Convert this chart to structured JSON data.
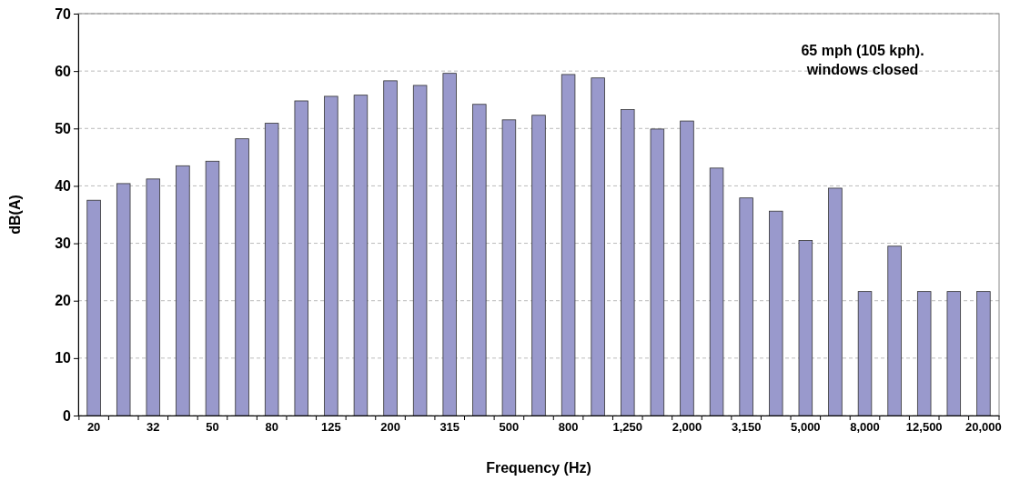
{
  "chart_data": {
    "type": "bar",
    "xlabel": "Frequency (Hz)",
    "ylabel": "dB(A)",
    "categories": [
      "20",
      null,
      "32",
      null,
      "50",
      null,
      "80",
      null,
      "125",
      null,
      "200",
      null,
      "315",
      null,
      "500",
      null,
      "800",
      null,
      "1,250",
      null,
      "2,000",
      null,
      "3,150",
      null,
      "5,000",
      null,
      "8,000",
      null,
      "12,500",
      null,
      "20,000"
    ],
    "values": [
      37.5,
      40.4,
      41.2,
      43.5,
      44.3,
      48.2,
      50.9,
      54.8,
      55.6,
      55.8,
      58.3,
      57.5,
      59.6,
      54.2,
      51.5,
      52.3,
      59.4,
      58.8,
      53.3,
      49.9,
      51.3,
      43.1,
      37.9,
      35.6,
      30.5,
      39.6,
      21.6,
      29.5,
      21.6,
      21.6,
      21.6
    ],
    "color": "#9999cc",
    "ylim": [
      0,
      70
    ],
    "yticks": [
      0,
      10,
      20,
      30,
      40,
      50,
      60,
      70
    ],
    "grid": "y",
    "annotations": [
      "65 mph (105 kph).\nwindows closed"
    ]
  }
}
